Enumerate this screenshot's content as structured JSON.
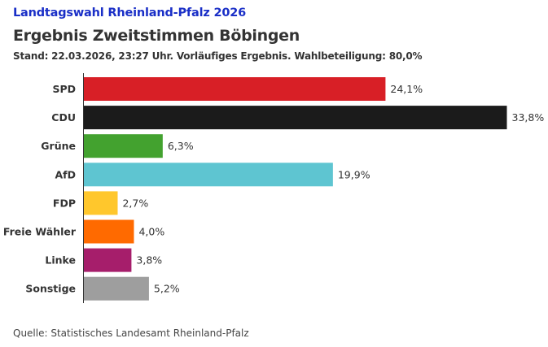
{
  "header": {
    "kicker": "Landtagswahl Rheinland-Pfalz 2026",
    "title": "Ergebnis Zweitstimmen Böbingen",
    "subtitle": "Stand: 22.03.2026, 23:27 Uhr. Vorläufiges Ergebnis. Wahlbeteiligung: 80,0%"
  },
  "footer": {
    "source": "Quelle: Statistisches Landesamt Rheinland-Pfalz"
  },
  "chart_data": {
    "type": "bar",
    "orientation": "horizontal",
    "title": "Ergebnis Zweitstimmen Böbingen",
    "xlabel": "",
    "ylabel": "",
    "unit": "%",
    "xlim": [
      0,
      35
    ],
    "grid": false,
    "legend": "none",
    "categories": [
      "SPD",
      "CDU",
      "Grüne",
      "AfD",
      "FDP",
      "Freie Wähler",
      "Linke",
      "Sonstige"
    ],
    "values": [
      24.1,
      33.8,
      6.3,
      19.9,
      2.7,
      4.0,
      3.8,
      5.2
    ],
    "value_labels": [
      "24,1%",
      "33,8%",
      "6,3%",
      "19,9%",
      "2,7%",
      "4,0%",
      "3,8%",
      "5,2%"
    ],
    "colors": [
      "#d81f26",
      "#1b1b1b",
      "#43a22f",
      "#5ec5d1",
      "#ffc72c",
      "#ff6a00",
      "#a61e6b",
      "#9e9e9e"
    ]
  }
}
